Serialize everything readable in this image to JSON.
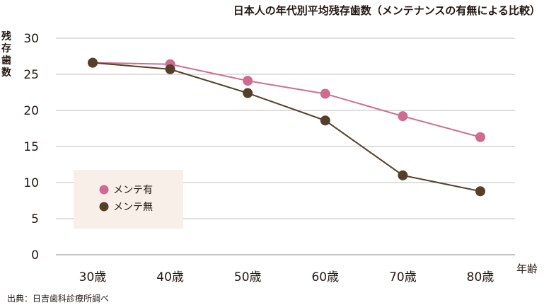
{
  "chart_data": {
    "type": "line",
    "title": "日本人の年代別平均残存歯数（メンテナンスの有無による比較）",
    "ylabel": "残存歯数",
    "xlabel": "年齢",
    "categories": [
      "30歳",
      "40歳",
      "50歳",
      "60歳",
      "70歳",
      "80歳"
    ],
    "ylim": [
      0,
      30
    ],
    "yticks": [
      "0",
      "5",
      "10",
      "15",
      "20",
      "25",
      "30"
    ],
    "grid": true,
    "legend_position": "center-left",
    "series": [
      {
        "name": "メンテ有",
        "color": "#cf6b91",
        "values": [
          26.6,
          26.4,
          24.1,
          22.3,
          19.2,
          16.3
        ]
      },
      {
        "name": "メンテ無",
        "color": "#553f2a",
        "values": [
          26.6,
          25.7,
          22.4,
          18.6,
          11.0,
          8.8
        ]
      }
    ],
    "source": "出典：日吉歯科診療所調べ"
  },
  "colors": {
    "legend_background": "#f7efe8",
    "grid": "#bfbfbf"
  }
}
